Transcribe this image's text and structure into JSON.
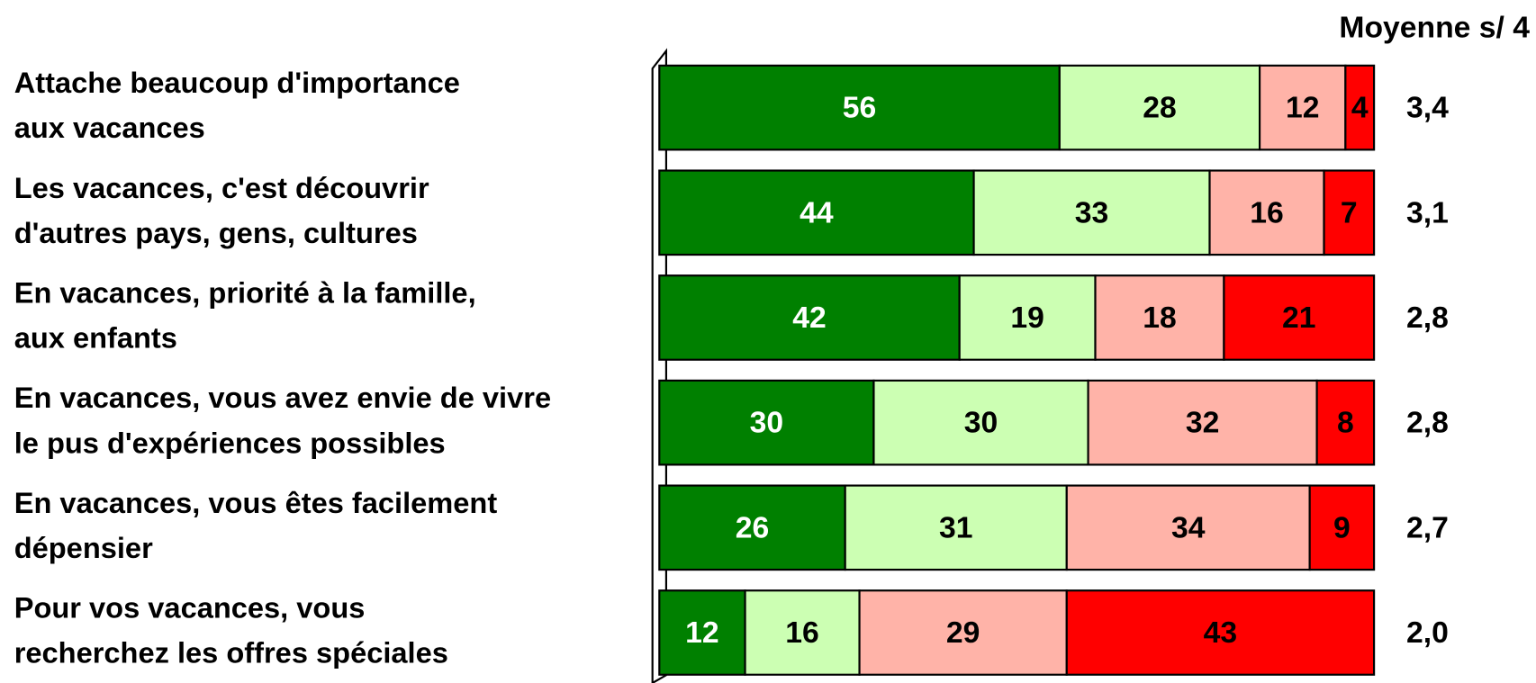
{
  "chart_data": {
    "type": "stacked-barh",
    "categories": [
      [
        "Attache beaucoup d'importance",
        "aux vacances"
      ],
      [
        "Les vacances, c'est découvrir",
        "d'autres pays, gens, cultures"
      ],
      [
        "En vacances, priorité à la famille,",
        "aux enfants"
      ],
      [
        "En vacances, vous avez envie de vivre",
        "le pus d'expériences possibles"
      ],
      [
        "En vacances, vous êtes facilement",
        "dépensier"
      ],
      [
        "Pour vos vacances, vous",
        "recherchez les offres spéciales"
      ]
    ],
    "series": [
      {
        "color": "#008000",
        "label_color": "#ffffff",
        "values": [
          56,
          44,
          42,
          30,
          26,
          12
        ]
      },
      {
        "color": "#ccffb3",
        "label_color": "#000000",
        "values": [
          28,
          33,
          19,
          30,
          31,
          16
        ]
      },
      {
        "color": "#ffb3a8",
        "label_color": "#000000",
        "values": [
          12,
          16,
          18,
          32,
          34,
          29
        ]
      },
      {
        "color": "#ff0000",
        "label_color": "#000000",
        "values": [
          4,
          7,
          21,
          8,
          9,
          43
        ]
      }
    ],
    "xlim": [
      0,
      100
    ],
    "averages": {
      "title": "Moyenne s/ 4",
      "values": [
        3.4,
        3.1,
        2.8,
        2.8,
        2.7,
        2.0
      ],
      "value_labels": [
        "3,4",
        "3,1",
        "2,8",
        "2,8",
        "2,7",
        "2,0"
      ]
    }
  }
}
